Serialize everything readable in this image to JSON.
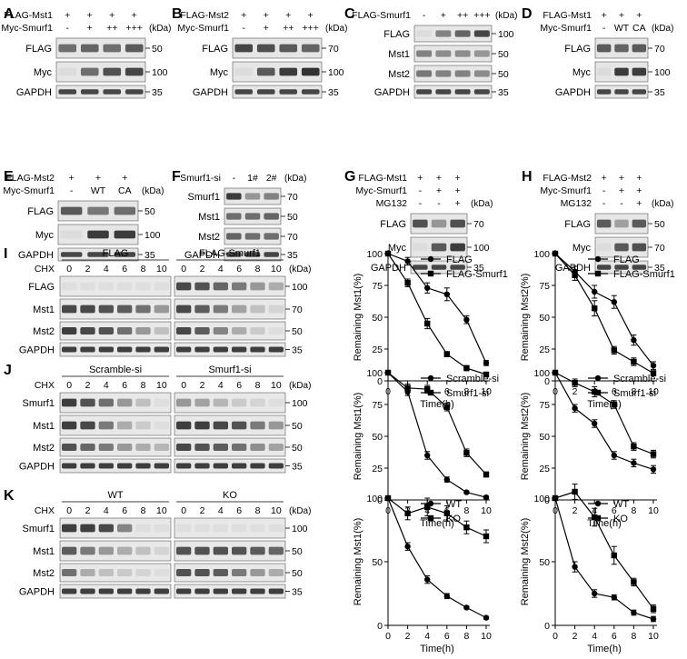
{
  "panels_top": [
    {
      "letter": "A",
      "treat_names": [
        "FLAG-Mst1",
        "Myc-Smurf1"
      ],
      "treat_values": [
        [
          "+",
          "+",
          "+",
          "+"
        ],
        [
          "-",
          "+",
          "++",
          "+++"
        ]
      ],
      "blots": [
        "FLAG",
        "Myc",
        "GAPDH"
      ],
      "markers": [
        "50",
        "100",
        "35"
      ]
    },
    {
      "letter": "B",
      "treat_names": [
        "FLAG-Mst2",
        "Myc-Smurf1"
      ],
      "treat_values": [
        [
          "+",
          "+",
          "+",
          "+"
        ],
        [
          "-",
          "+",
          "++",
          "+++"
        ]
      ],
      "blots": [
        "FLAG",
        "Myc",
        "GAPDH"
      ],
      "markers": [
        "70",
        "100",
        "35"
      ]
    },
    {
      "letter": "C",
      "treat_names": [
        "FLAG-Smurf1"
      ],
      "treat_values": [
        [
          "-",
          "+",
          "++",
          "+++"
        ]
      ],
      "blots": [
        "FLAG",
        "Mst1",
        "Mst2",
        "GAPDH"
      ],
      "markers": [
        "100",
        "50",
        "50",
        "35"
      ]
    },
    {
      "letter": "D",
      "treat_names": [
        "FLAG-Mst1",
        "Myc-Smurf1"
      ],
      "treat_values": [
        [
          "+",
          "+",
          "+"
        ],
        [
          "-",
          "WT",
          "CA"
        ]
      ],
      "blots": [
        "FLAG",
        "Myc",
        "GAPDH"
      ],
      "markers": [
        "70",
        "100",
        "35"
      ]
    },
    {
      "letter": "E",
      "treat_names": [
        "FLAG-Mst2",
        "Myc-Smurf1"
      ],
      "treat_values": [
        [
          "+",
          "+",
          "+"
        ],
        [
          "-",
          "WT",
          "CA"
        ]
      ],
      "blots": [
        "FLAG",
        "Myc",
        "GAPDH"
      ],
      "markers": [
        "50",
        "100",
        "35"
      ]
    },
    {
      "letter": "F",
      "treat_names": [
        "Smurf1-si"
      ],
      "treat_values": [
        [
          "-",
          "1#",
          "2#"
        ]
      ],
      "blots": [
        "Smurf1",
        "Mst1",
        "Mst2",
        "GAPDH"
      ],
      "markers": [
        "70",
        "50",
        "70",
        "35"
      ]
    },
    {
      "letter": "G",
      "treat_names": [
        "FLAG-Mst1",
        "Myc-Smurf1",
        "MG132"
      ],
      "treat_values": [
        [
          "+",
          "+",
          "+"
        ],
        [
          "-",
          "+",
          "+"
        ],
        [
          "-",
          "-",
          "+"
        ]
      ],
      "blots": [
        "FLAG",
        "Myc",
        "GAPDH"
      ],
      "markers": [
        "70",
        "100",
        "35"
      ]
    },
    {
      "letter": "H",
      "treat_names": [
        "FLAG-Mst2",
        "Myc-Smurf1",
        "MG132"
      ],
      "treat_values": [
        [
          "+",
          "+",
          "+"
        ],
        [
          "-",
          "+",
          "+"
        ],
        [
          "-",
          "-",
          "+"
        ]
      ],
      "blots": [
        "FLAG",
        "Myc",
        "GAPDH"
      ],
      "markers": [
        "50",
        "70",
        "35"
      ]
    }
  ],
  "kda": "(kDa)",
  "cht": {
    "chx": "CHX",
    "times": [
      "0",
      "2",
      "4",
      "6",
      "8",
      "10"
    ],
    "panels": [
      {
        "letter": "I",
        "groups": [
          "FLAG",
          "FLAG-Smurf1"
        ],
        "blots": [
          "FLAG",
          "Mst1",
          "Mst2",
          "GAPDH"
        ],
        "markers": [
          "100",
          "70",
          "50",
          "35"
        ]
      },
      {
        "letter": "J",
        "groups": [
          "Scramble-si",
          "Smurf1-si"
        ],
        "blots": [
          "Smurf1",
          "Mst1",
          "Mst2",
          "GAPDH"
        ],
        "markers": [
          "100",
          "50",
          "50",
          "35"
        ]
      },
      {
        "letter": "K",
        "groups": [
          "WT",
          "KO"
        ],
        "blots": [
          "Smurf1",
          "Mst1",
          "Mst2",
          "GAPDH"
        ],
        "markers": [
          "100",
          "50",
          "50",
          "35"
        ]
      }
    ]
  },
  "chart_data": [
    {
      "type": "line",
      "xlabel": "Time(h)",
      "ylabel": "Remaining Mst1(%)",
      "x": [
        0,
        2,
        4,
        6,
        8,
        10
      ],
      "xlim": [
        0,
        10
      ],
      "ylim": [
        0,
        100
      ],
      "xticks": [
        "0",
        "2",
        "4",
        "6",
        "8",
        "10"
      ],
      "yticks": [
        "0",
        "25",
        "50",
        "75",
        "100"
      ],
      "legend_position": "top-right",
      "series": [
        {
          "name": "FLAG",
          "marker": "circle",
          "values": [
            100,
            94,
            73,
            68,
            48,
            14
          ],
          "errors": [
            0,
            3,
            4,
            5,
            3,
            2
          ]
        },
        {
          "name": "FLAG-Smurf1",
          "marker": "square",
          "values": [
            100,
            77,
            45,
            21,
            10,
            5
          ],
          "errors": [
            0,
            3,
            4,
            2,
            2,
            1
          ]
        }
      ]
    },
    {
      "type": "line",
      "xlabel": "Time(h)",
      "ylabel": "Remaining Mst2(%)",
      "x": [
        0,
        2,
        4,
        6,
        8,
        10
      ],
      "xlim": [
        0,
        10
      ],
      "ylim": [
        0,
        100
      ],
      "xticks": [
        "0",
        "2",
        "4",
        "6",
        "8",
        "10"
      ],
      "yticks": [
        "0",
        "25",
        "50",
        "75",
        "100"
      ],
      "legend_position": "top-right",
      "series": [
        {
          "name": "FLAG",
          "marker": "circle",
          "values": [
            100,
            86,
            70,
            62,
            32,
            12
          ],
          "errors": [
            0,
            4,
            5,
            5,
            4,
            3
          ]
        },
        {
          "name": "FLAG-Smurf1",
          "marker": "square",
          "values": [
            100,
            83,
            57,
            24,
            15,
            6
          ],
          "errors": [
            0,
            4,
            6,
            3,
            3,
            2
          ]
        }
      ]
    },
    {
      "type": "line",
      "xlabel": "Time(h)",
      "ylabel": "Remaining Mst1(%)",
      "x": [
        0,
        2,
        4,
        6,
        8,
        10
      ],
      "xlim": [
        0,
        10
      ],
      "ylim": [
        0,
        100
      ],
      "xticks": [
        "0",
        "2",
        "4",
        "6",
        "8",
        "10"
      ],
      "yticks": [
        "0",
        "25",
        "50",
        "75",
        "100"
      ],
      "legend_position": "top-right",
      "series": [
        {
          "name": "Scramble-si",
          "marker": "circle",
          "values": [
            100,
            85,
            35,
            16,
            6,
            2
          ],
          "errors": [
            0,
            3,
            3,
            2,
            1,
            1
          ]
        },
        {
          "name": "Smurf1-si",
          "marker": "square",
          "values": [
            100,
            88,
            87,
            73,
            37,
            20
          ],
          "errors": [
            0,
            3,
            3,
            3,
            3,
            2
          ]
        }
      ]
    },
    {
      "type": "line",
      "xlabel": "Time(h)",
      "ylabel": "Remaining Mst2(%)",
      "x": [
        0,
        2,
        4,
        6,
        8,
        10
      ],
      "xlim": [
        0,
        10
      ],
      "ylim": [
        0,
        100
      ],
      "xticks": [
        "0",
        "2",
        "4",
        "6",
        "8",
        "10"
      ],
      "yticks": [
        "0",
        "25",
        "50",
        "75",
        "100"
      ],
      "legend_position": "top-right",
      "series": [
        {
          "name": "Scramble-si",
          "marker": "circle",
          "values": [
            100,
            72,
            60,
            35,
            29,
            24
          ],
          "errors": [
            0,
            3,
            3,
            3,
            3,
            3
          ]
        },
        {
          "name": "Smurf1-si",
          "marker": "square",
          "values": [
            100,
            92,
            85,
            75,
            42,
            36
          ],
          "errors": [
            0,
            3,
            4,
            3,
            3,
            3
          ]
        }
      ]
    },
    {
      "type": "line",
      "xlabel": "Time(h)",
      "ylabel": "Remaining Mst1(%)",
      "x": [
        0,
        2,
        4,
        6,
        8,
        10
      ],
      "xlim": [
        0,
        10
      ],
      "ylim": [
        0,
        100
      ],
      "xticks": [
        "0",
        "2",
        "4",
        "6",
        "8",
        "10"
      ],
      "yticks": [
        "0",
        "50",
        "100"
      ],
      "legend_position": "top-right",
      "series": [
        {
          "name": "WT",
          "marker": "circle",
          "values": [
            100,
            62,
            36,
            23,
            14,
            6
          ],
          "errors": [
            0,
            3,
            3,
            2,
            1,
            1
          ]
        },
        {
          "name": "KO",
          "marker": "square",
          "values": [
            100,
            88,
            93,
            88,
            77,
            70
          ],
          "errors": [
            0,
            5,
            7,
            6,
            5,
            5
          ]
        }
      ]
    },
    {
      "type": "line",
      "xlabel": "Time(h)",
      "ylabel": "Remaining Mst2(%)",
      "x": [
        0,
        2,
        4,
        6,
        8,
        10
      ],
      "xlim": [
        0,
        10
      ],
      "ylim": [
        0,
        100
      ],
      "xticks": [
        "0",
        "2",
        "4",
        "6",
        "8",
        "10"
      ],
      "yticks": [
        "0",
        "50",
        "100"
      ],
      "legend_position": "top-right",
      "series": [
        {
          "name": "WT",
          "marker": "circle",
          "values": [
            100,
            46,
            25,
            22,
            10,
            5
          ],
          "errors": [
            0,
            4,
            3,
            2,
            2,
            2
          ]
        },
        {
          "name": "KO",
          "marker": "square",
          "values": [
            100,
            105,
            85,
            55,
            34,
            13
          ],
          "errors": [
            0,
            6,
            7,
            7,
            3,
            3
          ]
        }
      ]
    }
  ]
}
